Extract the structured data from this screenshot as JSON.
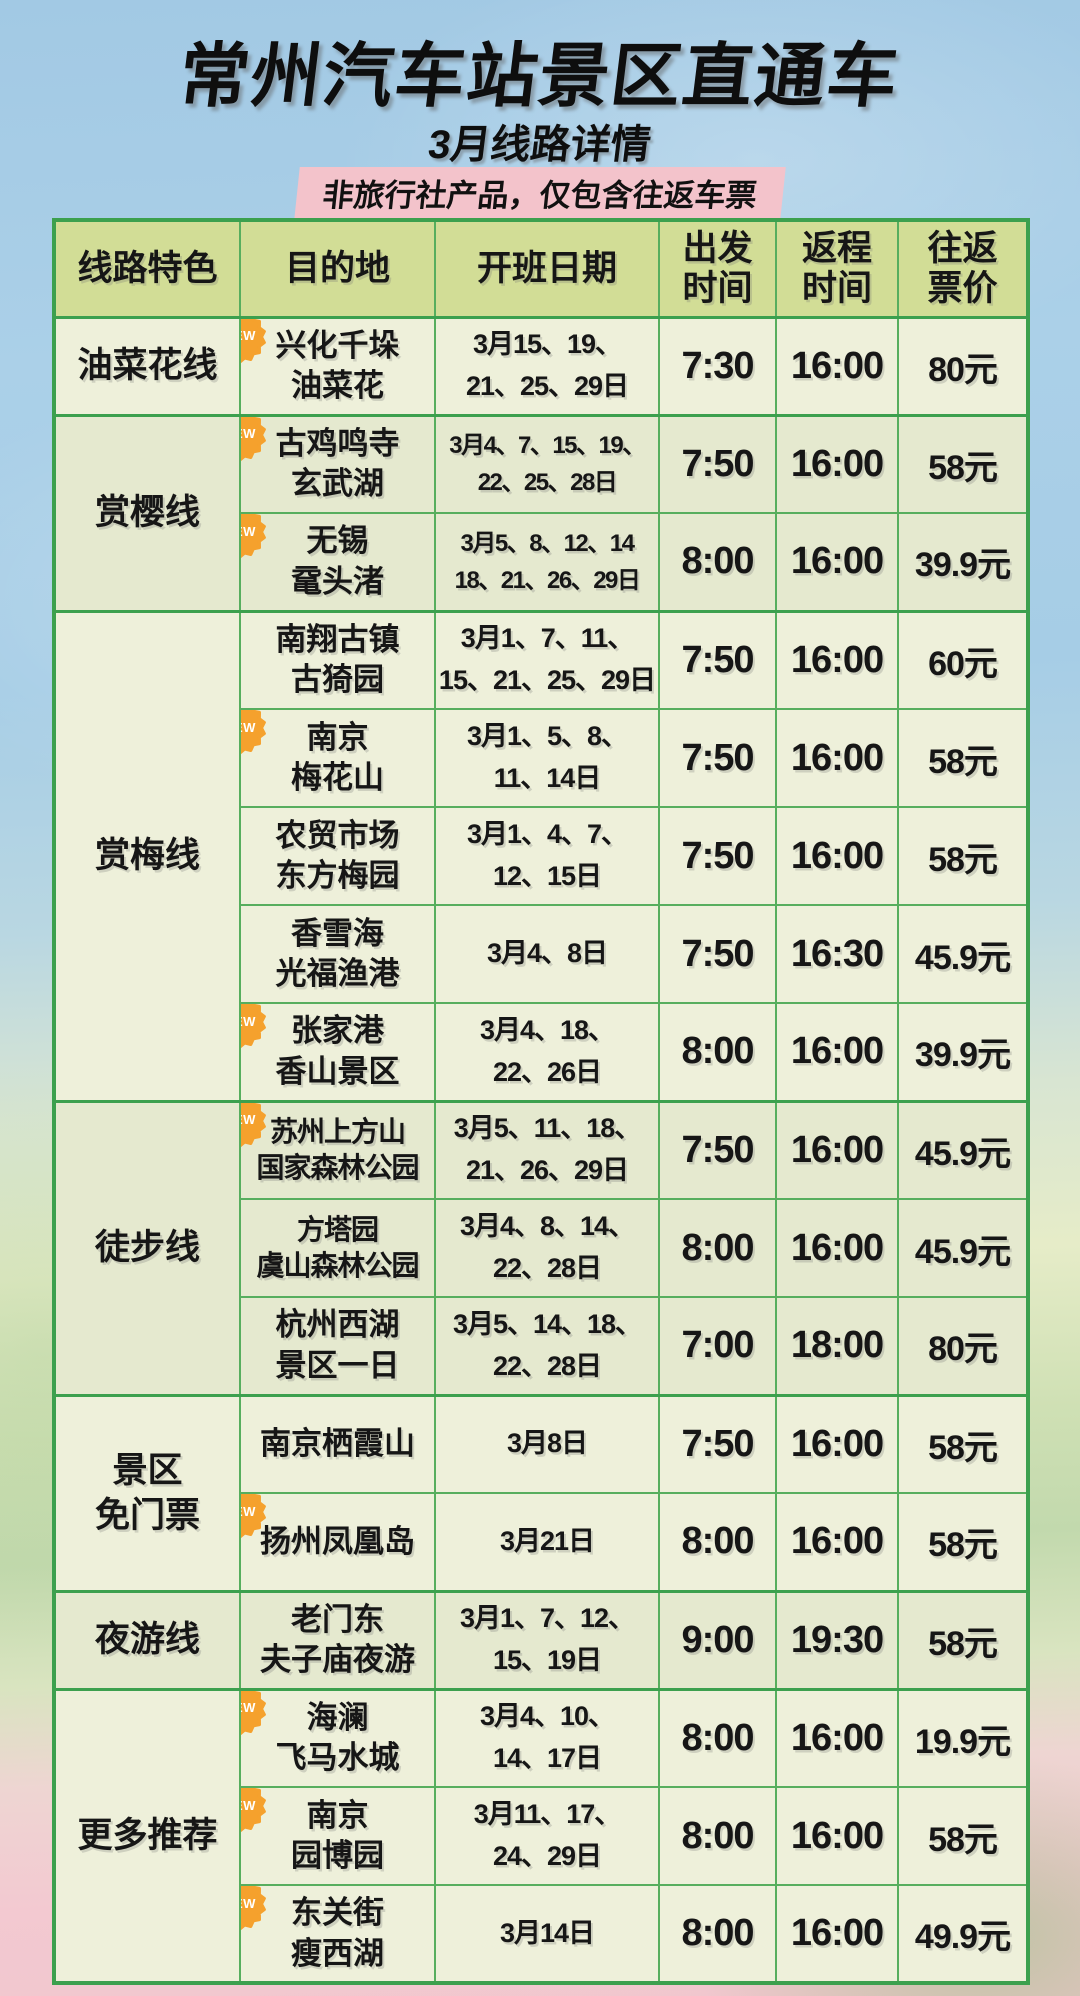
{
  "page": {
    "title": "常州汽车站景区直通车",
    "subtitle": "3月线路详情",
    "banner": "非旅行社产品，仅包含往返车票"
  },
  "badge_label": "NEW",
  "colors": {
    "border_strong": "#3ca04e",
    "border_mid": "#57ae5e",
    "border_soft": "#85c688",
    "header_bg": "#d2dd96",
    "row_light": "#eef0da",
    "row_dark": "#e5e9cf",
    "badge": "#f5a12d",
    "banner_bg": "#f3c3cb",
    "bg_top_blue": "#a8cfe7",
    "bg_mid_green": "#cfe0b4",
    "bg_bottom_pink": "#f2c8d0"
  },
  "table": {
    "headers": [
      "线路特色",
      "目的地",
      "开班日期",
      "出发\n时间",
      "返程\n时间",
      "往返\n票价"
    ],
    "groups": [
      {
        "category": "油菜花线",
        "shade": "light",
        "rows": [
          {
            "new": true,
            "destination": "兴化千垛\n油菜花",
            "dates": "3月15、19、\n21、25、29日",
            "depart": "7:30",
            "return": "16:00",
            "price": "80元"
          }
        ]
      },
      {
        "category": "赏樱线",
        "shade": "dark",
        "rows": [
          {
            "new": true,
            "destination": "古鸡鸣寺\n玄武湖",
            "dates": "3月4、7、15、19、\n22、25、28日",
            "dates_small": true,
            "depart": "7:50",
            "return": "16:00",
            "price": "58元"
          },
          {
            "new": true,
            "destination": "无锡\n鼋头渚",
            "dates": "3月5、8、12、14\n18、21、26、29日",
            "dates_small": true,
            "depart": "8:00",
            "return": "16:00",
            "price": "39.9元"
          }
        ]
      },
      {
        "category": "赏梅线",
        "shade": "light",
        "rows": [
          {
            "new": false,
            "destination": "南翔古镇\n古猗园",
            "dates": "3月1、7、11、\n15、21、25、29日",
            "depart": "7:50",
            "return": "16:00",
            "price": "60元"
          },
          {
            "new": true,
            "destination": "南京\n梅花山",
            "dates": "3月1、5、8、\n11、14日",
            "depart": "7:50",
            "return": "16:00",
            "price": "58元"
          },
          {
            "new": false,
            "destination": "农贸市场\n东方梅园",
            "dates": "3月1、4、7、\n12、15日",
            "depart": "7:50",
            "return": "16:00",
            "price": "58元"
          },
          {
            "new": false,
            "destination": "香雪海\n光福渔港",
            "dates": "3月4、8日",
            "depart": "7:50",
            "return": "16:30",
            "price": "45.9元"
          },
          {
            "new": true,
            "destination": "张家港\n香山景区",
            "dates": "3月4、18、\n22、26日",
            "depart": "8:00",
            "return": "16:00",
            "price": "39.9元"
          }
        ]
      },
      {
        "category": "徒步线",
        "shade": "dark",
        "rows": [
          {
            "new": true,
            "destination": "苏州上方山\n国家森林公园",
            "dest_small": true,
            "dates": "3月5、11、18、\n21、26、29日",
            "depart": "7:50",
            "return": "16:00",
            "price": "45.9元"
          },
          {
            "new": false,
            "destination": "方塔园\n虞山森林公园",
            "dest_small": true,
            "dates": "3月4、8、14、\n22、28日",
            "depart": "8:00",
            "return": "16:00",
            "price": "45.9元"
          },
          {
            "new": false,
            "destination": "杭州西湖\n景区一日",
            "dates": "3月5、14、18、\n22、28日",
            "depart": "7:00",
            "return": "18:00",
            "price": "80元"
          }
        ]
      },
      {
        "category": "景区\n免门票",
        "shade": "light",
        "rows": [
          {
            "new": false,
            "destination": "南京栖霞山",
            "dates": "3月8日",
            "depart": "7:50",
            "return": "16:00",
            "price": "58元"
          },
          {
            "new": true,
            "destination": "扬州凤凰岛",
            "dates": "3月21日",
            "depart": "8:00",
            "return": "16:00",
            "price": "58元"
          }
        ]
      },
      {
        "category": "夜游线",
        "shade": "dark",
        "rows": [
          {
            "new": false,
            "destination": "老门东\n夫子庙夜游",
            "dates": "3月1、7、12、\n15、19日",
            "depart": "9:00",
            "return": "19:30",
            "price": "58元"
          }
        ]
      },
      {
        "category": "更多推荐",
        "shade": "light",
        "rows": [
          {
            "new": true,
            "destination": "海澜\n飞马水城",
            "dates": "3月4、10、\n14、17日",
            "depart": "8:00",
            "return": "16:00",
            "price": "19.9元"
          },
          {
            "new": true,
            "destination": "南京\n园博园",
            "dates": "3月11、17、\n24、29日",
            "depart": "8:00",
            "return": "16:00",
            "price": "58元"
          },
          {
            "new": true,
            "destination": "东关街\n瘦西湖",
            "dates": "3月14日",
            "depart": "8:00",
            "return": "16:00",
            "price": "49.9元"
          }
        ]
      }
    ]
  }
}
